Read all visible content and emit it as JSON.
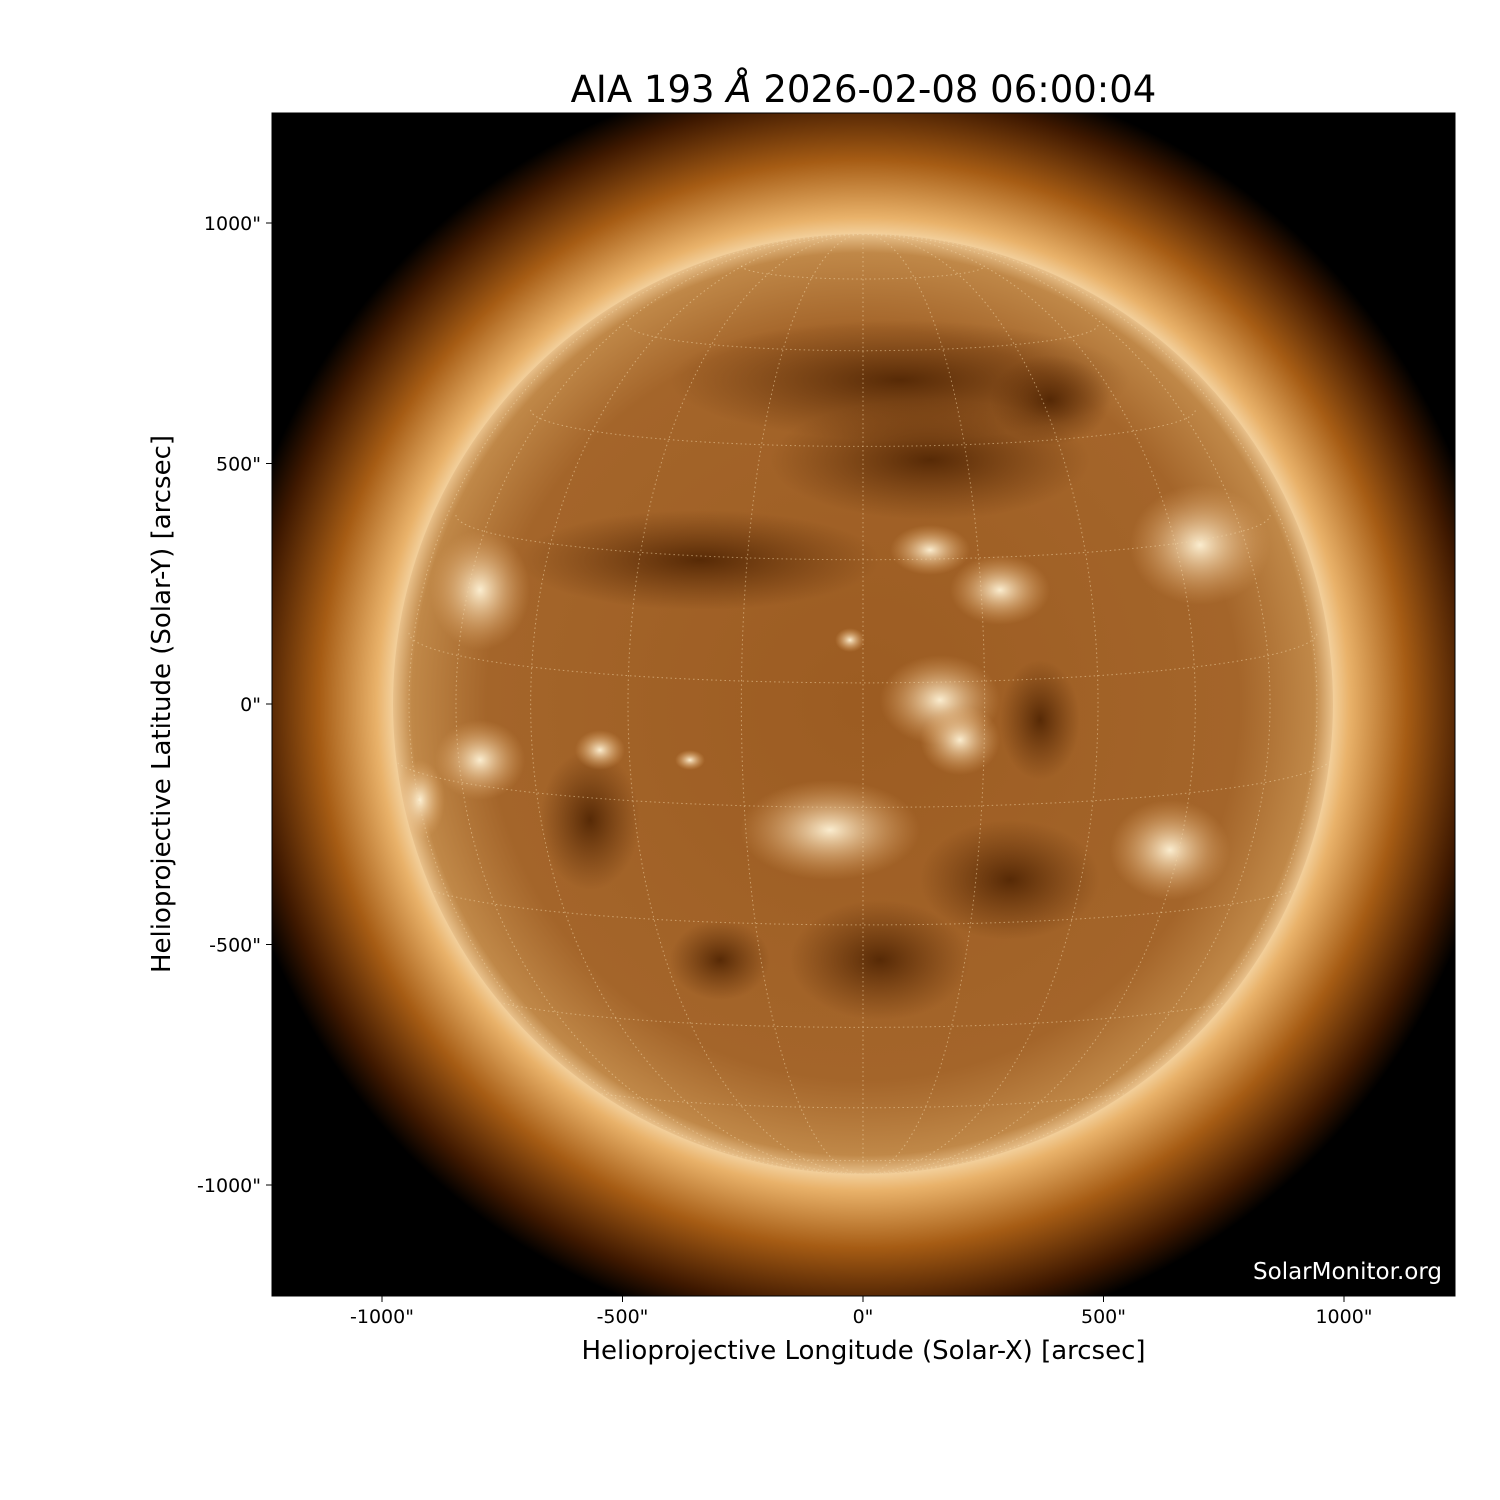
{
  "title": {
    "prefix": "AIA 193 ",
    "unit": "Å",
    "datetime": " 2026-02-08 06:00:04"
  },
  "xaxis": {
    "label": "Helioprojective Longitude (Solar-X) [arcsec]",
    "ticks": [
      "-1000\"",
      "-500\"",
      "0\"",
      "500\"",
      "1000\""
    ],
    "tick_values": [
      -1000,
      -500,
      0,
      500,
      1000
    ],
    "range": [
      -1230,
      1230
    ]
  },
  "yaxis": {
    "label": "Helioprojective Latitude (Solar-Y) [arcsec]",
    "ticks": [
      "1000\"",
      "500\"",
      "0\"",
      "-500\"",
      "-1000\""
    ],
    "tick_values": [
      1000,
      500,
      0,
      -500,
      -1000
    ],
    "range": [
      -1230,
      1230
    ]
  },
  "watermark": "SolarMonitor.org",
  "image": {
    "subject": "solar disk EUV image",
    "colormap": "sdoaia193",
    "grid": "heliographic, dotted",
    "colors": {
      "dark": "#3a1a00",
      "mid": "#9a5a1e",
      "bright": "#fff2d0"
    }
  }
}
